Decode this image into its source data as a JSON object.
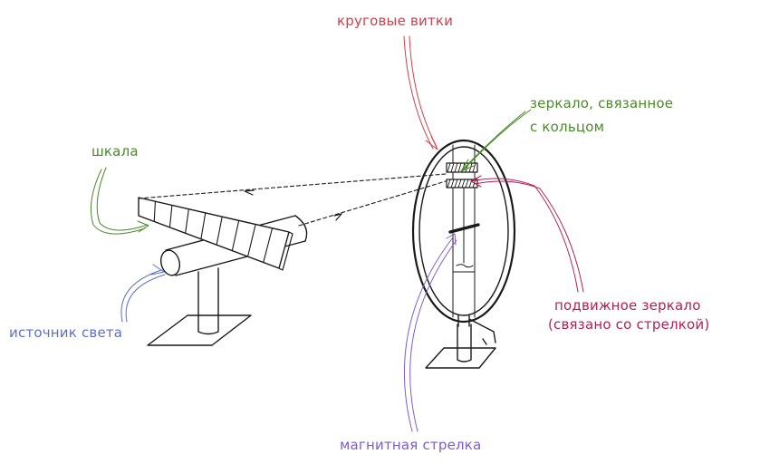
{
  "labels": {
    "circular_turns": "круговые витки",
    "mirror_ring_line1": "зеркало, связанное",
    "mirror_ring_line2": "с кольцом",
    "scale": "шкала",
    "light_source": "источник света",
    "movable_mirror_line1": "подвижное зеркало",
    "movable_mirror_line2": "(связано со стрелкой)",
    "magnetic_needle": "магнитная стрелка"
  },
  "colors": {
    "ink": "#1a1a1a",
    "red": "#d0404a",
    "green": "#4a8a2a",
    "blue": "#5b6fd0",
    "crimson": "#b81e55",
    "purple": "#7d5bd6"
  },
  "scale_divisions": 9
}
